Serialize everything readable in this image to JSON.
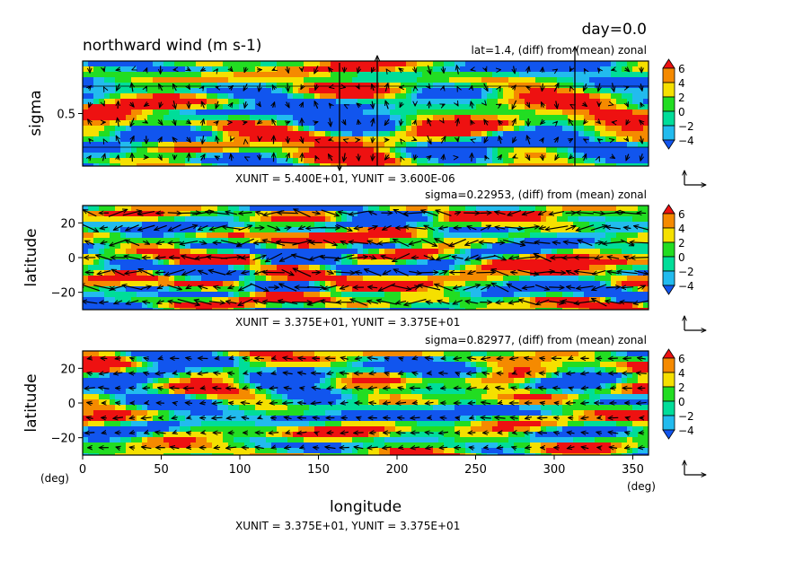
{
  "header": {
    "title": "northward wind (m s-1)",
    "day": "day=0.0"
  },
  "panels": [
    {
      "subtitle": "lat=1.4, (diff) from (mean) zonal",
      "ylabel": "sigma",
      "yticks": [
        {
          "value": 0.5,
          "label": "0.5"
        }
      ],
      "ylim": [
        0.0,
        1.0
      ],
      "unit_text": "XUNIT = 5.400E+01, YUNIT = 3.600E-06"
    },
    {
      "subtitle": "sigma=0.22953, (diff) from (mean) zonal",
      "ylabel": "latitude",
      "yticks": [
        {
          "value": 20,
          "label": "20"
        },
        {
          "value": 0,
          "label": "0"
        },
        {
          "value": -20,
          "label": "−20"
        }
      ],
      "ylim": [
        -30,
        30
      ],
      "unit_text": "XUNIT = 3.375E+01, YUNIT = 3.375E+01"
    },
    {
      "subtitle": "sigma=0.82977, (diff) from (mean) zonal",
      "ylabel": "latitude",
      "yticks": [
        {
          "value": 20,
          "label": "20"
        },
        {
          "value": 0,
          "label": "0"
        },
        {
          "value": -20,
          "label": "−20"
        }
      ],
      "ylim": [
        -30,
        30
      ],
      "unit_text": "XUNIT = 3.375E+01, YUNIT = 3.375E+01"
    }
  ],
  "xaxis": {
    "label": "longitude",
    "ticks": [
      0,
      50,
      100,
      150,
      200,
      250,
      300,
      350
    ],
    "tick_labels": [
      "0",
      "50",
      "100",
      "150",
      "200",
      "250",
      "300",
      "350"
    ],
    "xlim": [
      0,
      360
    ],
    "left_unit": "(deg)",
    "right_unit": "(deg)"
  },
  "colorbar": {
    "levels": [
      6,
      4,
      2,
      0,
      -2,
      -4
    ],
    "labels": [
      "6",
      "4",
      "2",
      "0",
      "−2",
      "−4"
    ],
    "colors": [
      "#ee1111",
      "#f58a00",
      "#f5e000",
      "#22dd22",
      "#00dd99",
      "#22bbee",
      "#1155ee"
    ]
  },
  "chart_data": [
    {
      "type": "heatmap",
      "title": "northward wind (m s-1)",
      "subtitle": "lat=1.4, (diff) from (mean) zonal",
      "x": "longitude",
      "xlabel": "longitude",
      "ylabel": "sigma",
      "xlim": [
        0,
        360
      ],
      "ylim": [
        0,
        1
      ],
      "levels": [
        -4,
        -2,
        0,
        2,
        4,
        6
      ],
      "vectors": "XUNIT = 5.400E+01, YUNIT = 3.600E-06"
    },
    {
      "type": "heatmap",
      "subtitle": "sigma=0.22953, (diff) from (mean) zonal",
      "xlabel": "longitude",
      "ylabel": "latitude",
      "xlim": [
        0,
        360
      ],
      "ylim": [
        -30,
        30
      ],
      "levels": [
        -4,
        -2,
        0,
        2,
        4,
        6
      ],
      "vectors": "XUNIT = 3.375E+01, YUNIT = 3.375E+01"
    },
    {
      "type": "heatmap",
      "subtitle": "sigma=0.82977, (diff) from (mean) zonal",
      "xlabel": "longitude",
      "ylabel": "latitude",
      "xlim": [
        0,
        360
      ],
      "ylim": [
        -30,
        30
      ],
      "levels": [
        -4,
        -2,
        0,
        2,
        4,
        6
      ],
      "vectors": "XUNIT = 3.375E+01, YUNIT = 3.375E+01"
    }
  ]
}
